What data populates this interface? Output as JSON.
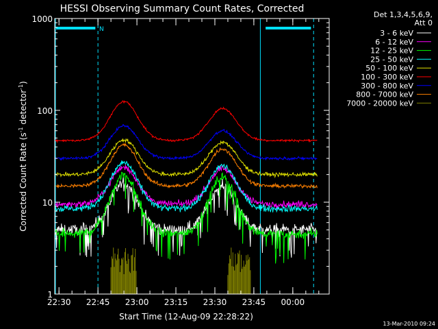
{
  "chart_data": {
    "type": "line",
    "title": "HESSI Observing Summary Count Rates, Corrected",
    "xlabel": "Start Time (12-Aug-09 22:28:22)",
    "ylabel_main": "Corrected Count Rate (s",
    "ylabel_sup1": "-1",
    "ylabel_mid": " detector",
    "ylabel_sup2": "-1",
    "ylabel_end": ")",
    "yscale": "log",
    "ylim": [
      1,
      1000
    ],
    "xlim_minutes": [
      1348.37,
      1454
    ],
    "x_ticks": [
      {
        "minute": 1350,
        "label": "22:30"
      },
      {
        "minute": 1365,
        "label": "22:45"
      },
      {
        "minute": 1380,
        "label": "23:00"
      },
      {
        "minute": 1395,
        "label": "23:15"
      },
      {
        "minute": 1410,
        "label": "23:30"
      },
      {
        "minute": 1425,
        "label": "23:45"
      },
      {
        "minute": 1440,
        "label": "00:00"
      }
    ],
    "y_ticks": [
      {
        "value": 1,
        "label": "1"
      },
      {
        "value": 10,
        "label": "10"
      },
      {
        "value": 100,
        "label": "100"
      },
      {
        "value": 1000,
        "label": "1000"
      }
    ],
    "timestamp": "13-Mar-2010 09:24",
    "legend_header_1": "Det 1,3,4,5,6,9,",
    "legend_header_2": "Att 0",
    "night_marker_label": "N",
    "night_bars": [
      [
        1348.37,
        1364
      ],
      [
        1429,
        1447
      ]
    ],
    "dashed_markers": [
      1365,
      1448
    ],
    "solid_markers": [
      1348.37,
      1427.5
    ],
    "attenuator_bursts": [
      {
        "start": 1370,
        "end": 1380,
        "heights": [
          2,
          3,
          2.5,
          3,
          2,
          2.8,
          3,
          2.2,
          2.7,
          3,
          2.4,
          2
        ]
      },
      {
        "start": 1415,
        "end": 1424,
        "heights": [
          2,
          2.5,
          3,
          2.6,
          3,
          2.2,
          2.8,
          2.4,
          2,
          2.6
        ]
      }
    ],
    "series": [
      {
        "name": "3 - 6 keV",
        "color": "#ffffff",
        "base": 5.0,
        "peak1": 16,
        "peak2": 15,
        "noise": 0.06
      },
      {
        "name": "6 - 12 keV",
        "color": "#ff00ff",
        "base": 9.5,
        "peak1": 24,
        "peak2": 23,
        "noise": 0.035
      },
      {
        "name": "12 - 25 keV",
        "color": "#00ff00",
        "base": 4.5,
        "peak1": 20,
        "peak2": 19,
        "noise": 0.05
      },
      {
        "name": "25 - 50 keV",
        "color": "#00ffff",
        "base": 8.5,
        "peak1": 27,
        "peak2": 25,
        "noise": 0.035
      },
      {
        "name": "50 - 100 keV",
        "color": "#e0e000",
        "base": 20,
        "peak1": 48,
        "peak2": 45,
        "noise": 0.02
      },
      {
        "name": "100 - 300 keV",
        "color": "#ff0000",
        "base": 47,
        "peak1": 125,
        "peak2": 105,
        "noise": 0.012
      },
      {
        "name": "300 - 800 keV",
        "color": "#0000ff",
        "base": 30,
        "peak1": 68,
        "peak2": 60,
        "noise": 0.014
      },
      {
        "name": "800 - 7000 keV",
        "color": "#ff8000",
        "base": 15,
        "peak1": 42,
        "peak2": 38,
        "noise": 0.02
      },
      {
        "name": "7000 - 20000 keV",
        "color": "#808000",
        "base": null,
        "peak1": null,
        "peak2": null,
        "noise": 0
      }
    ],
    "peak_centers": [
      1375,
      1413
    ],
    "peak_width": 7.5,
    "colors": {
      "background": "#000000",
      "axes": "#ffffff",
      "night_marker": "#00e0ff"
    }
  }
}
